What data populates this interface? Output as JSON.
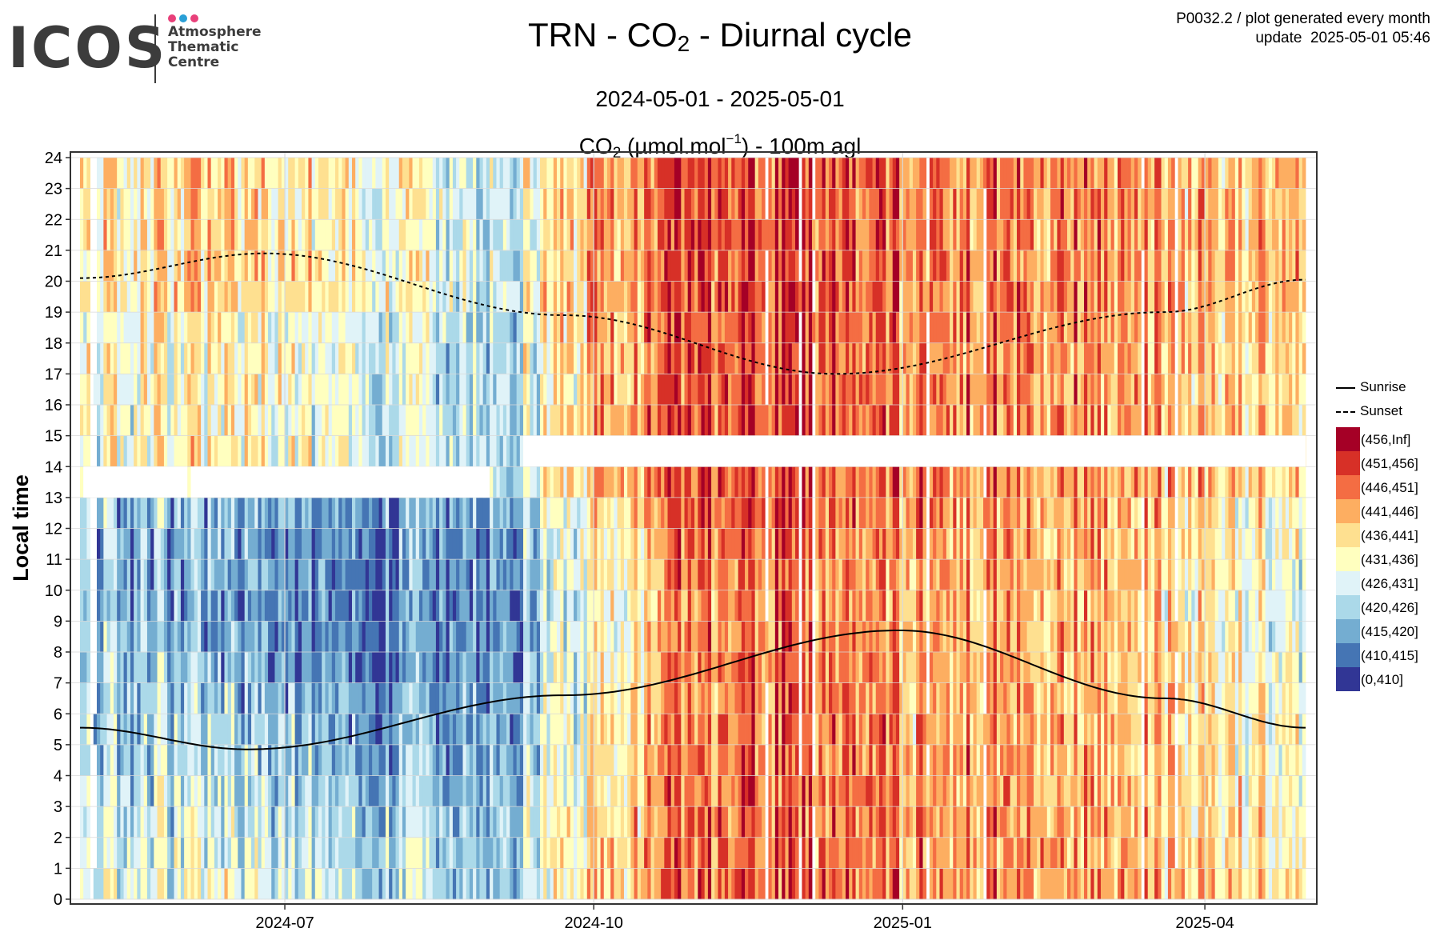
{
  "header": {
    "logo_word": "ICOS",
    "logo_lines": [
      "Atmosphere",
      "Thematic",
      "Centre"
    ],
    "logo_dot_colors": [
      "#e8407a",
      "#2a9fd6",
      "#e8407a"
    ],
    "meta_line1": "P0032.2 / plot generated every month",
    "meta_line2": "update  2025-05-01 05:46"
  },
  "chart_data": {
    "type": "heatmap",
    "title_parts": [
      "TRN - CO",
      "2",
      " - Diurnal cycle"
    ],
    "subtitle": "2024-05-01 - 2025-05-01",
    "unit_parts": [
      "CO",
      "2",
      " (µmol.mol",
      "−1",
      ") - 100m agl"
    ],
    "ylabel": "Local time",
    "ylim": [
      0,
      24
    ],
    "y_ticks": [
      0,
      1,
      2,
      3,
      4,
      5,
      6,
      7,
      8,
      9,
      10,
      11,
      12,
      13,
      14,
      15,
      16,
      17,
      18,
      19,
      20,
      21,
      22,
      23,
      24
    ],
    "x_range": [
      "2024-05-01",
      "2025-05-01"
    ],
    "x_ticks": [
      "2024-07",
      "2024-10",
      "2025-01",
      "2025-04"
    ],
    "x_tick_dates": [
      "2024-07-01",
      "2024-10-01",
      "2025-01-01",
      "2025-04-01"
    ],
    "grid": true,
    "legend_position": "right",
    "lines": [
      {
        "name": "Sunrise",
        "style": "solid",
        "dates": [
          "2024-05-01",
          "2024-06-20",
          "2024-09-22",
          "2024-12-31",
          "2025-03-20",
          "2025-05-01"
        ],
        "values": [
          5.55,
          4.85,
          6.6,
          8.7,
          6.5,
          5.55
        ]
      },
      {
        "name": "Sunset",
        "style": "dashed",
        "dates": [
          "2024-05-01",
          "2024-06-25",
          "2024-09-22",
          "2024-12-12",
          "2025-03-20",
          "2025-05-01"
        ],
        "values": [
          20.1,
          20.9,
          18.9,
          17.0,
          19.0,
          20.05
        ]
      }
    ],
    "classes": [
      {
        "label": "(456,Inf]",
        "color": "#a50026"
      },
      {
        "label": "(451,456]",
        "color": "#d73027"
      },
      {
        "label": "(446,451]",
        "color": "#f46d43"
      },
      {
        "label": "(441,446]",
        "color": "#fdae61"
      },
      {
        "label": "(436,441]",
        "color": "#fee090"
      },
      {
        "label": "(431,436]",
        "color": "#ffffbf"
      },
      {
        "label": "(426,431]",
        "color": "#e0f3f8"
      },
      {
        "label": "(420,426]",
        "color": "#abd9e9"
      },
      {
        "label": "(415,420]",
        "color": "#74add1"
      },
      {
        "label": "(410,415]",
        "color": "#4575b4"
      },
      {
        "label": "(0,410]",
        "color": "#313695"
      }
    ],
    "missing_blocks": [
      {
        "from": "2024-05-02",
        "to": "2024-06-02",
        "hours": [
          13,
          14
        ]
      },
      {
        "from": "2024-06-03",
        "to": "2024-08-31",
        "hours": [
          13,
          14
        ]
      },
      {
        "from": "2024-09-10",
        "to": "2025-05-01",
        "hours": [
          14,
          15
        ]
      }
    ],
    "season_trend": {
      "dates": [
        "2024-05-01",
        "2024-06-15",
        "2024-08-01",
        "2024-09-01",
        "2024-10-01",
        "2024-10-25",
        "2024-11-20",
        "2025-01-01",
        "2025-02-01",
        "2025-03-01",
        "2025-04-01",
        "2025-05-01"
      ],
      "night_class": [
        4.5,
        4.0,
        5.0,
        6.5,
        3.0,
        1.8,
        1.0,
        2.5,
        2.2,
        2.5,
        3.2,
        3.8
      ],
      "day_class": [
        7.5,
        8.5,
        9.0,
        8.5,
        5.5,
        3.0,
        1.8,
        3.5,
        3.0,
        3.5,
        4.5,
        6.5
      ]
    }
  }
}
